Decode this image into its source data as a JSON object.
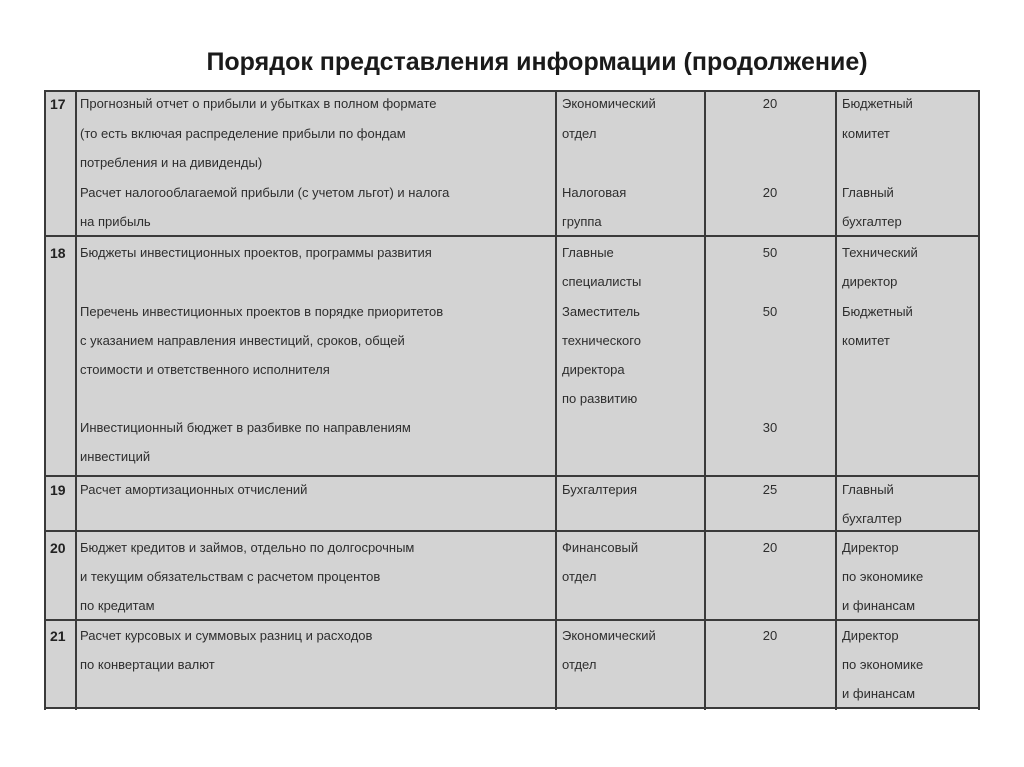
{
  "title": "Порядок представления информации (продолжение)",
  "rows": [
    {
      "num": "17",
      "desc": [
        "Прогнозный отчет о прибыли и убытках в полном формате",
        "(то есть включая распределение прибыли по фондам",
        "потребления и на дивиденды)",
        "Расчет налогооблагаемой прибыли (с учетом льгот) и налога",
        "на прибыль"
      ],
      "dept": [
        "Экономический",
        "отдел",
        "Налоговая",
        "группа"
      ],
      "days": [
        "20",
        "20"
      ],
      "resp": [
        "Бюджетный",
        "комитет",
        "Главный",
        "бухгалтер"
      ]
    },
    {
      "num": "18",
      "desc": [
        "Бюджеты инвестиционных проектов, программы развития",
        "Перечень инвестиционных проектов в порядке приоритетов",
        "с указанием направления инвестиций, сроков, общей",
        "стоимости и ответственного исполнителя",
        "Инвестиционный бюджет в разбивке по направлениям",
        "инвестиций"
      ],
      "dept": [
        "Главные",
        "специалисты",
        "Заместитель",
        "технического",
        "директора",
        "по развитию"
      ],
      "days": [
        "50",
        "50",
        "30"
      ],
      "resp": [
        "Технический",
        "директор",
        "Бюджетный",
        "комитет"
      ]
    },
    {
      "num": "19",
      "desc": [
        "Расчет амортизационных отчислений"
      ],
      "dept": [
        "Бухгалтерия"
      ],
      "days": [
        "25"
      ],
      "resp": [
        "Главный",
        "бухгалтер"
      ]
    },
    {
      "num": "20",
      "desc": [
        "Бюджет кредитов и займов, отдельно по долгосрочным",
        "и текущим обязательствам с расчетом процентов",
        "по кредитам"
      ],
      "dept": [
        "Финансовый",
        "отдел"
      ],
      "days": [
        "20"
      ],
      "resp": [
        "Директор",
        "по экономике",
        "и финансам"
      ]
    },
    {
      "num": "21",
      "desc": [
        "Расчет курсовых и суммовых разниц и расходов",
        "по конвертации валют"
      ],
      "dept": [
        "Экономический",
        "отдел"
      ],
      "days": [
        "20"
      ],
      "resp": [
        "Директор",
        "по экономике",
        "и финансам"
      ]
    }
  ]
}
